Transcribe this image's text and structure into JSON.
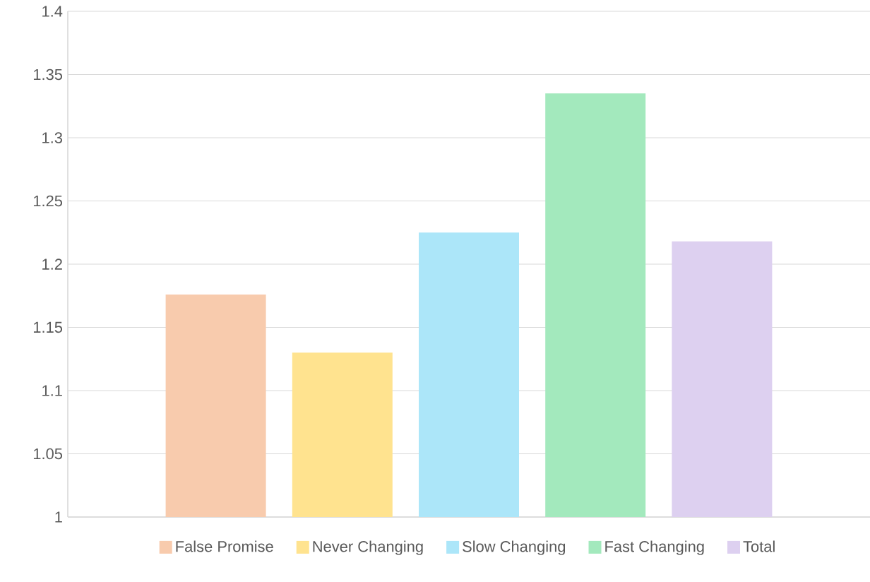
{
  "chart_data": {
    "type": "bar",
    "categories": [
      null
    ],
    "series": [
      {
        "name": "False Promise",
        "color": "#f8cbad",
        "values": [
          1.176
        ]
      },
      {
        "name": "Never Changing",
        "color": "#ffe38f",
        "values": [
          1.13
        ]
      },
      {
        "name": "Slow Changing",
        "color": "#ace6f9",
        "values": [
          1.225
        ]
      },
      {
        "name": "Fast Changing",
        "color": "#a3e9bd",
        "values": [
          1.335
        ]
      },
      {
        "name": "Total",
        "color": "#ddd0f0",
        "values": [
          1.218
        ]
      }
    ],
    "ylim": [
      1,
      1.4
    ],
    "yticks": [
      1,
      1.05,
      1.1,
      1.15,
      1.2,
      1.25,
      1.3,
      1.35,
      1.4
    ],
    "grid": "y",
    "legend": "bottom",
    "tick_labels": "y"
  }
}
